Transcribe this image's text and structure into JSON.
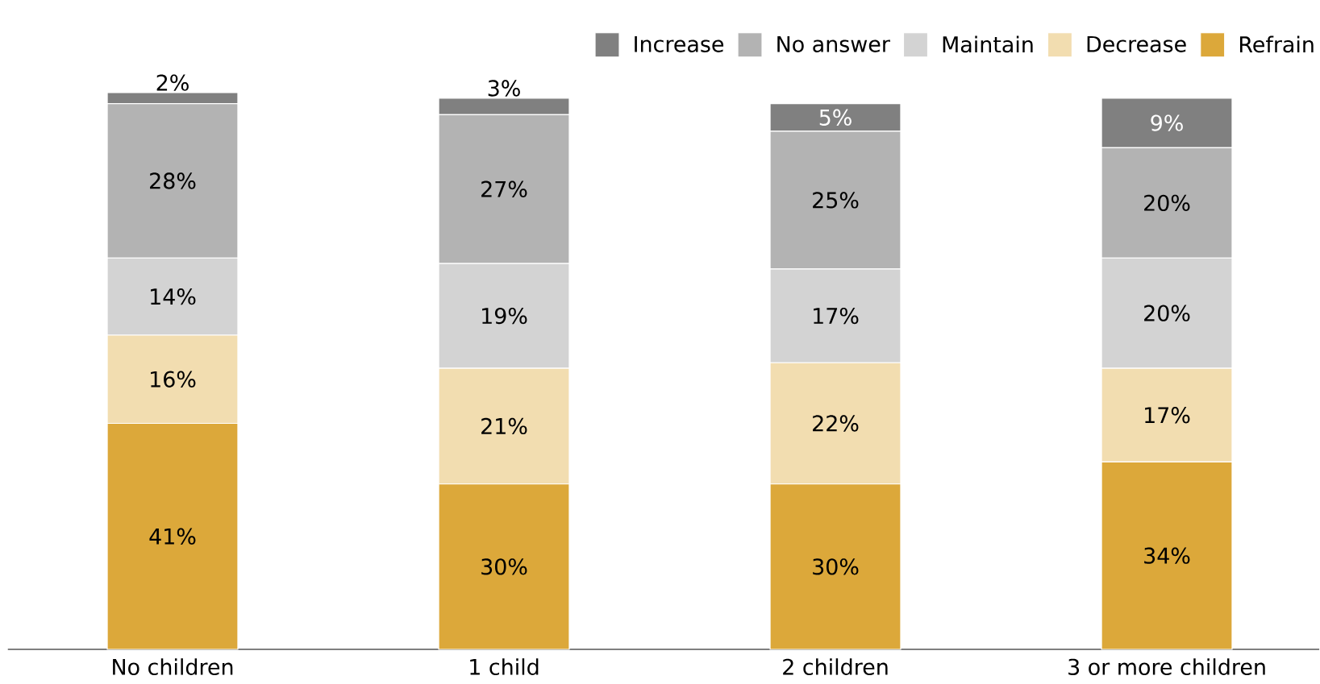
{
  "chart_data": {
    "type": "bar",
    "stacked": true,
    "legend": "top right",
    "categories": [
      "No children",
      "1 child",
      "2 children",
      "3 or more children"
    ],
    "ylim": [
      0,
      101
    ],
    "series": [
      {
        "name": "Refrain",
        "color": "#dca83a",
        "values": [
          41,
          30,
          30,
          34
        ],
        "value_labels": [
          "41%",
          "30%",
          "30%",
          "34%"
        ]
      },
      {
        "name": "Decrease",
        "color": "#f2ddb0",
        "values": [
          16,
          21,
          22,
          17
        ],
        "value_labels": [
          "16%",
          "21%",
          "22%",
          "17%"
        ]
      },
      {
        "name": "Maintain",
        "color": "#d3d3d3",
        "values": [
          14,
          19,
          17,
          20
        ],
        "value_labels": [
          "14%",
          "19%",
          "17%",
          "20%"
        ]
      },
      {
        "name": "No answer",
        "color": "#b3b3b3",
        "values": [
          28,
          27,
          25,
          20
        ],
        "value_labels": [
          "28%",
          "27%",
          "25%",
          "20%"
        ]
      },
      {
        "name": "Increase",
        "color": "#808080",
        "values": [
          2,
          3,
          5,
          9
        ],
        "value_labels": [
          "2%",
          "3%",
          "5%",
          "9%"
        ]
      }
    ]
  }
}
